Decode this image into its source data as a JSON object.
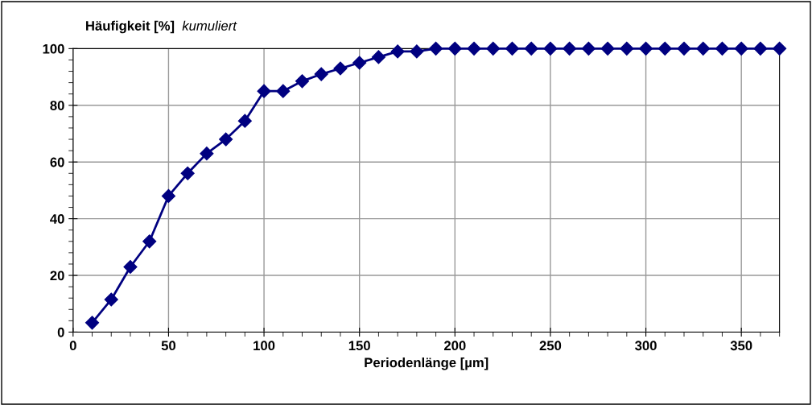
{
  "chart_data": {
    "type": "line",
    "title": "Häufigkeit [%]",
    "subtitle": "kumuliert",
    "xlabel": "Periodenlänge [µm]",
    "x": [
      10,
      20,
      30,
      40,
      50,
      60,
      70,
      80,
      90,
      100,
      110,
      120,
      130,
      140,
      150,
      160,
      170,
      180,
      190,
      200,
      210,
      220,
      230,
      240,
      250,
      260,
      270,
      280,
      290,
      300,
      310,
      320,
      330,
      340,
      350,
      360,
      370
    ],
    "series": [
      {
        "color": "#000080",
        "values": [
          3.3,
          11.5,
          23,
          32,
          48,
          56,
          63,
          68,
          74.5,
          85,
          85,
          88.5,
          91,
          93,
          95,
          97,
          99,
          99,
          100,
          100,
          100,
          100,
          100,
          100,
          100,
          100,
          100,
          100,
          100,
          100,
          100,
          100,
          100,
          100,
          100,
          100,
          100
        ]
      }
    ],
    "xlim": [
      0,
      370
    ],
    "xticks": [
      0,
      50,
      100,
      150,
      200,
      250,
      300,
      350
    ],
    "ylim": [
      0,
      100
    ],
    "yticks": [
      0,
      20,
      40,
      60,
      80,
      100
    ],
    "grid": true,
    "legend": false,
    "marker": "diamond",
    "line_style": "solid"
  }
}
